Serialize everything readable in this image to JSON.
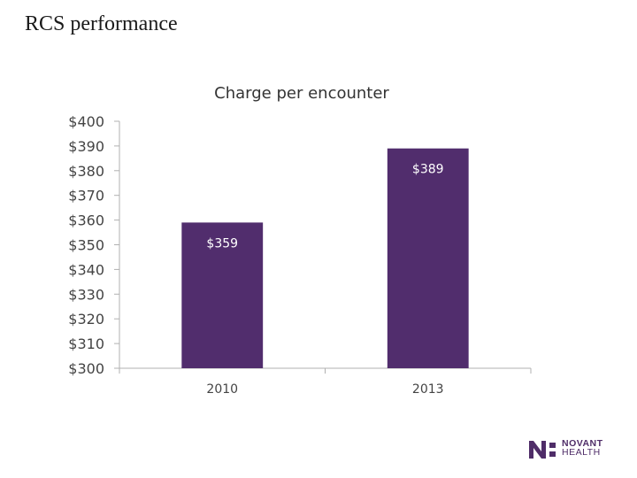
{
  "page": {
    "title": "RCS performance"
  },
  "chart_data": {
    "type": "bar",
    "title": "Charge per encounter",
    "categories": [
      "2010",
      "2013"
    ],
    "values": [
      359,
      389
    ],
    "data_labels": [
      "$359",
      "$389"
    ],
    "ylim": [
      300,
      400
    ],
    "yticks": [
      "$400",
      "$390",
      "$380",
      "$370",
      "$360",
      "$350",
      "$340",
      "$330",
      "$320",
      "$310",
      "$300"
    ],
    "xlabel": "",
    "ylabel": "",
    "grid": false,
    "bar_color": "#512d6d"
  },
  "logo": {
    "line1": "NOVANT",
    "line2": "HEALTH",
    "color": "#4f2d68"
  }
}
